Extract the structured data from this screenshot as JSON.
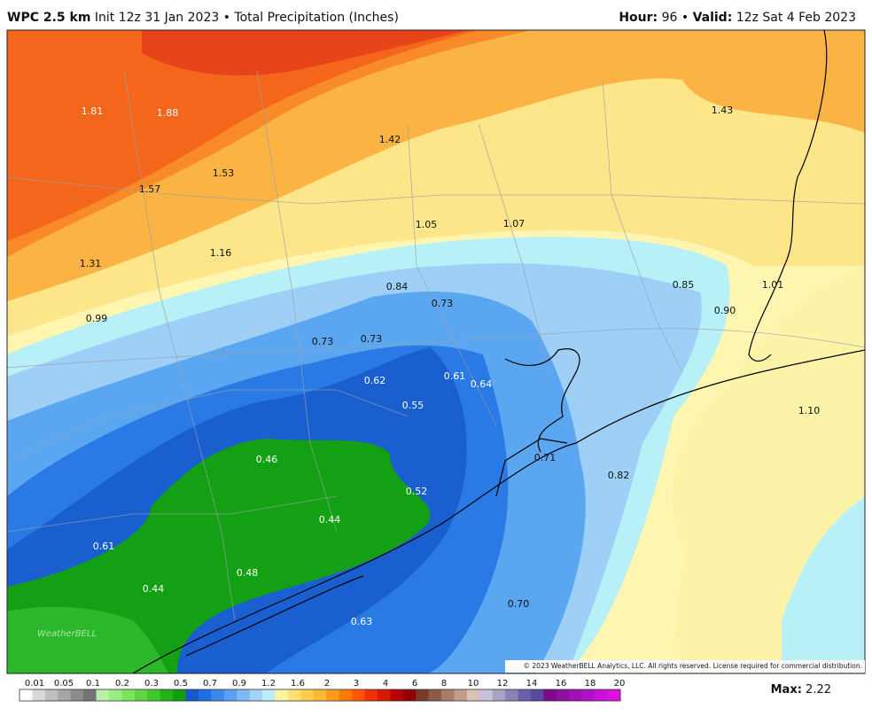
{
  "header": {
    "model": "WPC 2.5 km",
    "info": "Init 12z 31 Jan 2023 • Total Precipitation (Inches)",
    "hour_label": "Hour:",
    "hour_value": "96 •",
    "valid_label": "Valid:",
    "valid_value": "12z Sat 4 Feb 2023"
  },
  "map": {
    "labels": [
      "1.81",
      "1.88",
      "1.42",
      "1.43",
      "1.53",
      "1.57",
      "1.05",
      "1.07",
      "1.31",
      "1.16",
      "0.84",
      "0.85",
      "1.01",
      "0.73",
      "0.90",
      "0.99",
      "0.73",
      "0.73",
      "0.62",
      "0.61",
      "0.64",
      "0.55",
      "1.10",
      "0.46",
      "0.71",
      "0.82",
      "0.52",
      "0.44",
      "0.61",
      "0.48",
      "0.44",
      "0.70",
      "0.63"
    ]
  },
  "logo": "WeatherBELL",
  "copyright": "© 2023 WeatherBELL Analytics, LLC. All rights reserved. License required for commercial distribution.",
  "legend": {
    "levels": [
      "0.01",
      "0.05",
      "0.1",
      "0.2",
      "0.3",
      "0.5",
      "0.7",
      "0.9",
      "1.2",
      "1.6",
      "2",
      "3",
      "4",
      "6",
      "8",
      "10",
      "12",
      "14",
      "16",
      "18",
      "20"
    ],
    "colors": [
      "#ffffff",
      "#d9d9d9",
      "#bfbfbf",
      "#a6a6a6",
      "#8c8c8c",
      "#737373",
      "#b5f2a5",
      "#99ec82",
      "#7de35f",
      "#5fd640",
      "#3fc828",
      "#20b21a",
      "#119c12",
      "#1a56cc",
      "#1f6ee6",
      "#3a88ee",
      "#5aa0f2",
      "#7fb9f5",
      "#a3d2f7",
      "#bdeefa",
      "#fff4a0",
      "#ffe070",
      "#ffcc4d",
      "#ffb833",
      "#ff9a1a",
      "#ff7a00",
      "#ff5500",
      "#f03000",
      "#d81800",
      "#b80000",
      "#900000",
      "#7a3a2a",
      "#8e5a48",
      "#a87b6a",
      "#c49c8c",
      "#ddc0b4",
      "#c8c0d8",
      "#aaa0c8",
      "#8c80b8",
      "#6e5ea8",
      "#5a4898",
      "#7a0a8a",
      "#8e10a0",
      "#a010b4",
      "#b410c8",
      "#c810d8",
      "#e010e0"
    ]
  },
  "max": {
    "label": "Max:",
    "value": "2.22"
  }
}
